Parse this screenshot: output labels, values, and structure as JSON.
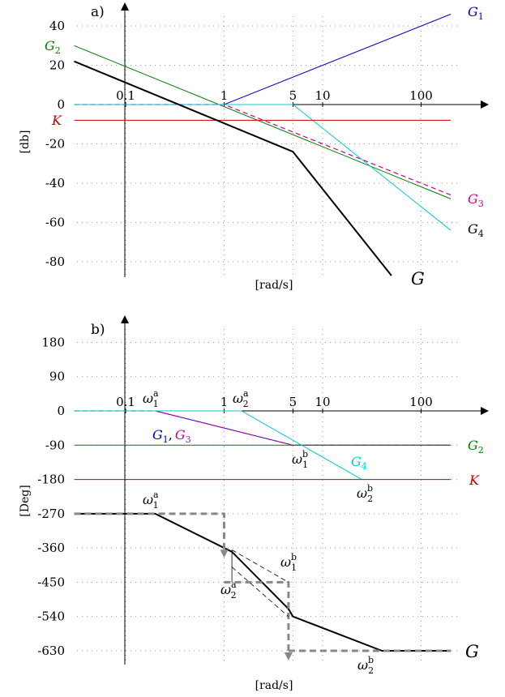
{
  "chart_data": [
    {
      "type": "line",
      "panel_label": "a)",
      "xscale": "log",
      "xlim": [
        0.03,
        500
      ],
      "ylim": [
        -88,
        50
      ],
      "x_ticks": [
        0.1,
        1,
        5,
        10,
        100
      ],
      "x_tick_labels": [
        "0.1",
        "1",
        "5",
        "10",
        "100"
      ],
      "y_ticks": [
        40,
        20,
        0,
        -20,
        -40,
        -60,
        -80
      ],
      "y_tick_labels": [
        "40",
        "20",
        "0",
        "-20",
        "-40",
        "-60",
        "-80"
      ],
      "xlabel": "[rad/s]",
      "ylabel": "[db]",
      "series": [
        {
          "name": "G",
          "sub": "1",
          "color": "#0000cc",
          "width": 1,
          "dash": "",
          "points": [
            [
              0.03,
              0
            ],
            [
              1,
              0
            ],
            [
              200,
              46
            ]
          ]
        },
        {
          "name": "G",
          "sub": "2",
          "color": "#008000",
          "width": 1,
          "dash": "",
          "points": [
            [
              0.03,
              30
            ],
            [
              200,
              -48
            ]
          ]
        },
        {
          "name": "G",
          "sub": "3",
          "color": "#cc0099",
          "width": 1.2,
          "dash": "6 4",
          "points": [
            [
              0.03,
              0
            ],
            [
              1,
              0
            ],
            [
              200,
              -46
            ]
          ]
        },
        {
          "name": "G",
          "sub": "4",
          "color": "#00cccc",
          "width": 1,
          "dash": "",
          "points": [
            [
              0.03,
              0
            ],
            [
              5,
              0
            ],
            [
              200,
              -64
            ]
          ]
        },
        {
          "name": "K",
          "sub": "",
          "color": "#cc0000",
          "width": 1,
          "dash": "",
          "points": [
            [
              0.03,
              -8
            ],
            [
              200,
              -8
            ]
          ]
        },
        {
          "name": "G",
          "sub": "",
          "color": "#000000",
          "width": 2,
          "dash": "",
          "points": [
            [
              0.03,
              22
            ],
            [
              5,
              -24
            ],
            [
              50,
              -87
            ]
          ]
        }
      ]
    },
    {
      "type": "line",
      "panel_label": "b)",
      "xscale": "log",
      "xlim": [
        0.03,
        500
      ],
      "ylim": [
        -665,
        215
      ],
      "x_ticks": [
        0.1,
        1,
        5,
        10,
        100
      ],
      "x_tick_labels": [
        "0.1",
        "1",
        "5",
        "10",
        "100"
      ],
      "y_ticks": [
        180,
        90,
        0,
        -90,
        -180,
        -270,
        -360,
        -450,
        -540,
        -630
      ],
      "y_tick_labels": [
        "180",
        "90",
        "0",
        "-90",
        "-180",
        "-270",
        "-360",
        "-450",
        "-540",
        "-630"
      ],
      "xlabel": "[rad/s]",
      "ylabel": "[Deg]",
      "series": [
        {
          "name": "G",
          "sub": "1",
          "color": "#0000cc",
          "width": 1,
          "dash": "",
          "points": [
            [
              0.03,
              0
            ],
            [
              0.2,
              0
            ],
            [
              5,
              -90
            ],
            [
              200,
              -90
            ]
          ]
        },
        {
          "name": "G",
          "sub": "3",
          "color": "#cc0099",
          "width": 1.2,
          "dash": "6 4",
          "points": [
            [
              0.03,
              0
            ],
            [
              0.2,
              0
            ],
            [
              5,
              -90
            ],
            [
              200,
              -90
            ]
          ]
        },
        {
          "name": "G",
          "sub": "2",
          "color": "#008000",
          "width": 1,
          "dash": "",
          "points": [
            [
              0.03,
              -90
            ],
            [
              200,
              -90
            ]
          ]
        },
        {
          "name": "G",
          "sub": "4",
          "color": "#00cccc",
          "width": 1,
          "dash": "",
          "points": [
            [
              0.03,
              0
            ],
            [
              1.5,
              0
            ],
            [
              25,
              -180
            ]
          ]
        },
        {
          "name": "K",
          "sub": "",
          "color": "#cc0000",
          "width": 1,
          "dash": "",
          "points": [
            [
              0.03,
              -180
            ],
            [
              200,
              -180
            ]
          ]
        },
        {
          "name": "G",
          "sub": "",
          "color": "#000000",
          "width": 2,
          "dash": "",
          "points": [
            [
              0.03,
              -270
            ],
            [
              0.2,
              -270
            ],
            [
              1.2,
              -370
            ],
            [
              4.5,
              -520
            ],
            [
              5,
              -540
            ],
            [
              40,
              -630
            ],
            [
              200,
              -630
            ]
          ]
        },
        {
          "name": "",
          "sub": "",
          "color": "#888888",
          "width": 3,
          "dash": "8 5",
          "points": [
            [
              0.03,
              -270
            ],
            [
              1,
              -270
            ],
            [
              1,
              -375
            ]
          ],
          "arrow": true
        },
        {
          "name": "",
          "sub": "",
          "color": "#888888",
          "width": 3,
          "dash": "8 5",
          "points": [
            [
              1,
              -450
            ],
            [
              4.5,
              -450
            ],
            [
              4.5,
              -645
            ]
          ],
          "arrow": true
        },
        {
          "name": "",
          "sub": "",
          "color": "#888888",
          "width": 3,
          "dash": "8 5",
          "points": [
            [
              4.5,
              -630
            ],
            [
              200,
              -630
            ]
          ]
        },
        {
          "name": "",
          "sub": "",
          "color": "#000000",
          "width": 0.8,
          "dash": "6 4",
          "points": [
            [
              1.2,
              -365
            ],
            [
              4.5,
              -450
            ]
          ]
        },
        {
          "name": "",
          "sub": "",
          "color": "#000000",
          "width": 0.8,
          "dash": "6 4",
          "points": [
            [
              1.2,
              -410
            ],
            [
              4.5,
              -540
            ]
          ]
        },
        {
          "name": "",
          "sub": "",
          "color": "#000000",
          "width": 0.8,
          "dash": "",
          "points": [
            [
              1.2,
              -365
            ],
            [
              1.2,
              -450
            ]
          ]
        }
      ]
    }
  ],
  "annotations_a": {
    "g1": {
      "base": "G",
      "sub": "1",
      "color": "#0000cc"
    },
    "g2": {
      "base": "G",
      "sub": "2",
      "color": "#008000"
    },
    "k": {
      "base": "K",
      "sub": "",
      "color": "#cc0000"
    },
    "g3": {
      "base": "G",
      "sub": "3",
      "color": "#cc0099"
    },
    "g4": {
      "base": "G",
      "sub": "4",
      "color": "#000000"
    },
    "g": {
      "base": "G",
      "sub": "",
      "color": "#000000"
    }
  },
  "annotations_b": {
    "w1a_top": {
      "base": "ω",
      "sub": "1",
      "sup": "a"
    },
    "w2a_top": {
      "base": "ω",
      "sub": "2",
      "sup": "a"
    },
    "w1b_top": {
      "base": "ω",
      "sub": "1",
      "sup": "b"
    },
    "w2b_top": {
      "base": "ω",
      "sub": "2",
      "sup": "b"
    },
    "w1a_bot": {
      "base": "ω",
      "sub": "1",
      "sup": "a"
    },
    "w2a_bot": {
      "base": "ω",
      "sub": "2",
      "sup": "a"
    },
    "w1b_bot": {
      "base": "ω",
      "sub": "1",
      "sup": "b"
    },
    "w2b_bot": {
      "base": "ω",
      "sub": "2",
      "sup": "b"
    },
    "g13": {
      "g1": "G",
      "g1_sub": "1",
      "g1_color": "#0000cc",
      "comma": ",",
      "g3": "G",
      "g3_sub": "3",
      "g3_color": "#cc0099"
    },
    "g2": {
      "base": "G",
      "sub": "2",
      "color": "#008000"
    },
    "g4": {
      "base": "G",
      "sub": "4",
      "color": "#00cccc"
    },
    "k": {
      "base": "K",
      "sub": "",
      "color": "#cc0000"
    },
    "g": {
      "base": "G",
      "sub": "",
      "color": "#000000"
    }
  }
}
